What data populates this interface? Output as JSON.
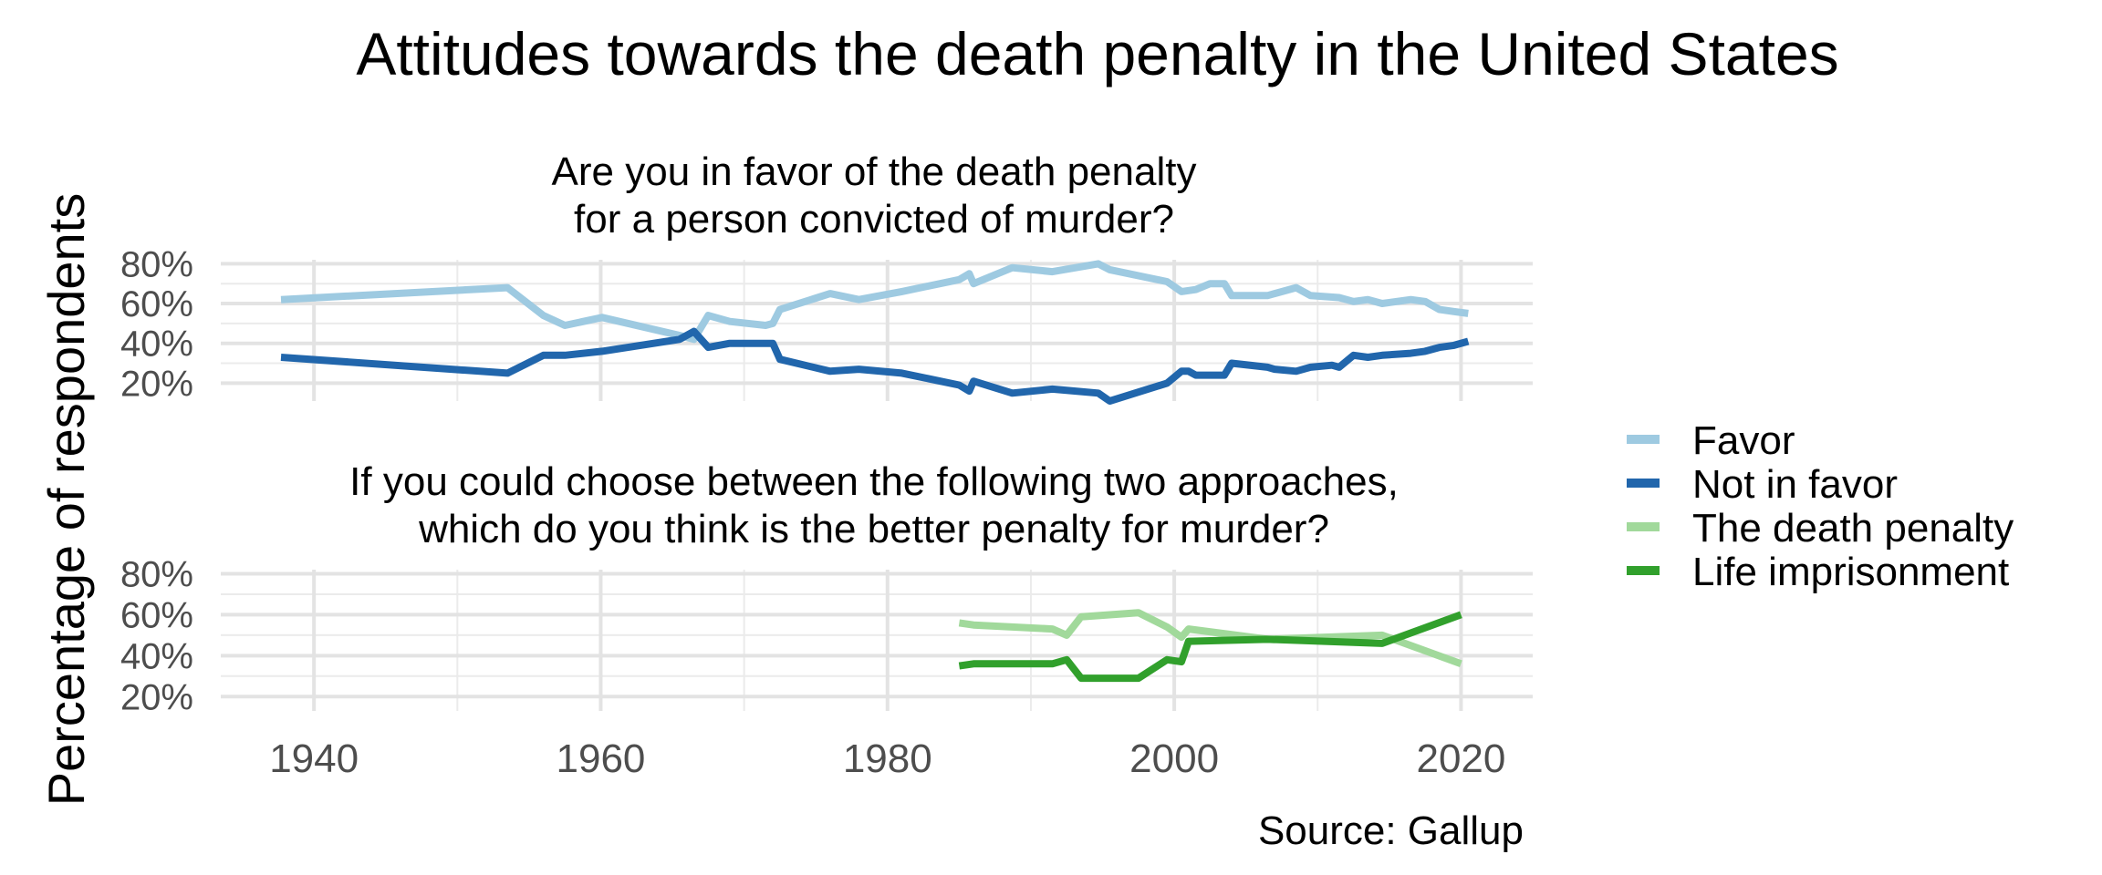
{
  "chart_data": {
    "type": "line",
    "title": "Attitudes towards the death penalty in the United States",
    "ylabel": "Percentage of respondents",
    "caption": "Source: Gallup",
    "xlim": [
      1933.5,
      2025
    ],
    "x_ticks": [
      1940,
      1960,
      1980,
      2000,
      2020
    ],
    "x_tick_labels": [
      "1940",
      "1960",
      "1980",
      "2000",
      "2020"
    ],
    "grid": true,
    "legend_position": "right",
    "legend": [
      {
        "label": "Favor",
        "color": "#9ecae1"
      },
      {
        "label": "Not in favor",
        "color": "#2166ac"
      },
      {
        "label": "The death penalty",
        "color": "#a1d99b"
      },
      {
        "label": "Life imprisonment",
        "color": "#31a02c"
      }
    ],
    "panels": [
      {
        "subtitle_lines": [
          "Are you in favor of the death penalty",
          "for a person convicted of murder?"
        ],
        "ylim": [
          11,
          82
        ],
        "y_ticks": [
          20,
          40,
          60,
          80
        ],
        "y_tick_labels": [
          "20%",
          "40%",
          "60%",
          "80%"
        ],
        "series": [
          {
            "name": "Favor",
            "color": "#9ecae1",
            "x": [
              1937.7,
              1953.5,
              1956,
              1957.5,
              1960.1,
              1965.5,
              1966.5,
              1967.5,
              1969,
              1971.5,
              1972,
              1972.5,
              1976,
              1978,
              1981,
              1985,
              1985.7,
              1986,
              1988.7,
              1991.5,
              1994.7,
              1995.5,
              1999.5,
              2000.5,
              2001.5,
              2002.5,
              2003.5,
              2004,
              2006.5,
              2007,
              2008.5,
              2009.5,
              2011.5,
              2012.5,
              2013.5,
              2014.5,
              2016.5,
              2017.5,
              2018.5,
              2019.5,
              2020.5
            ],
            "values": [
              62,
              68,
              54,
              49,
              53,
              44,
              42,
              54,
              51,
              49,
              50,
              57,
              65,
              62,
              66,
              72,
              75,
              70,
              78,
              76,
              80,
              77,
              71,
              66,
              67,
              70,
              70,
              64,
              64,
              65,
              68,
              64,
              63,
              61,
              62,
              60,
              62,
              61,
              57,
              56,
              55
            ]
          },
          {
            "name": "Not in favor",
            "color": "#2166ac",
            "x": [
              1937.7,
              1953.5,
              1956,
              1957.5,
              1960.1,
              1965.5,
              1966.5,
              1967.5,
              1969,
              1971.5,
              1972,
              1972.5,
              1976,
              1978,
              1981,
              1985,
              1985.7,
              1986,
              1988.7,
              1991.5,
              1994.7,
              1995.5,
              1999.5,
              2000.5,
              2001,
              2001.5,
              2002.5,
              2003.5,
              2004,
              2006.5,
              2007,
              2008.5,
              2009.5,
              2011,
              2011.5,
              2012.5,
              2013.5,
              2014.5,
              2016.5,
              2017.5,
              2018.5,
              2019.5,
              2020.5
            ],
            "values": [
              33,
              25,
              34,
              34,
              36,
              42,
              46,
              38,
              40,
              40,
              40,
              32,
              26,
              27,
              25,
              19,
              16,
              21,
              15,
              17,
              15,
              11,
              20,
              26,
              26,
              24,
              24,
              24,
              30,
              28,
              27,
              26,
              28,
              29,
              28,
              34,
              33,
              34,
              35,
              36,
              38,
              39,
              41
            ]
          }
        ]
      },
      {
        "subtitle_lines": [
          "If you could choose between the following two approaches,",
          "which do you think is the better penalty for murder?"
        ],
        "ylim": [
          13,
          82
        ],
        "y_ticks": [
          20,
          40,
          60,
          80
        ],
        "y_tick_labels": [
          "20%",
          "40%",
          "60%",
          "80%"
        ],
        "series": [
          {
            "name": "The death penalty",
            "color": "#a1d99b",
            "x": [
              1985,
              1986,
              1991.5,
              1992.5,
              1993.5,
              1997.5,
              1999.5,
              2000.5,
              2001,
              2006.5,
              2010.5,
              2014.5,
              2020
            ],
            "values": [
              56,
              55,
              53,
              50,
              59,
              61,
              54,
              49,
              53,
              48,
              49,
              50,
              36
            ]
          },
          {
            "name": "Life imprisonment",
            "color": "#31a02c",
            "x": [
              1985,
              1986,
              1991.5,
              1992.5,
              1993.5,
              1997.5,
              1999.5,
              2000.5,
              2001,
              2006.5,
              2010.5,
              2014.5,
              2020
            ],
            "values": [
              35,
              36,
              36,
              38,
              29,
              29,
              38,
              37,
              47,
              48,
              47,
              46,
              60
            ]
          }
        ]
      }
    ]
  }
}
